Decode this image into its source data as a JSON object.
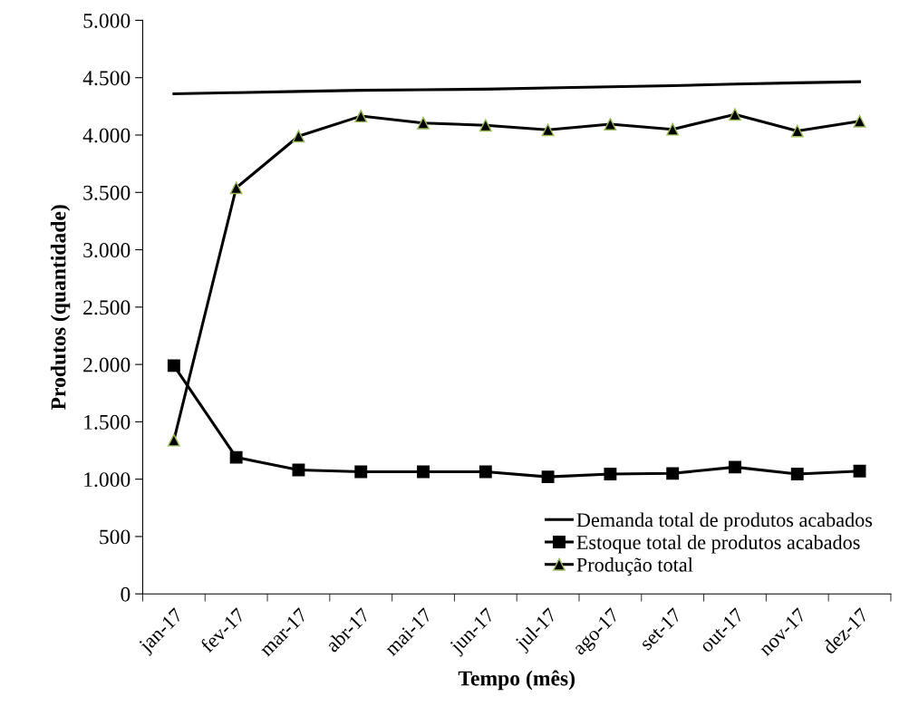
{
  "chart_data": {
    "type": "line",
    "xlabel": "Tempo (mês)",
    "ylabel": "Produtos (quantidade)",
    "categories": [
      "jan-17",
      "fev-17",
      "mar-17",
      "abr-17",
      "mai-17",
      "jun-17",
      "jul-17",
      "ago-17",
      "set-17",
      "out-17",
      "nov-17",
      "dez-17"
    ],
    "series": [
      {
        "name": "Demanda total de produtos acabados",
        "color": "#000000",
        "marker": "none",
        "values": [
          4360,
          4370,
          4380,
          4390,
          4395,
          4400,
          4410,
          4420,
          4430,
          4445,
          4455,
          4465
        ]
      },
      {
        "name": "Estoque total de produtos acabados",
        "color": "#000000",
        "marker": "square",
        "values": [
          1990,
          1190,
          1080,
          1065,
          1065,
          1065,
          1020,
          1045,
          1050,
          1105,
          1045,
          1070
        ]
      },
      {
        "name": "Produção total",
        "color": "#000000",
        "marker": "triangle",
        "values": [
          1340,
          3540,
          3990,
          4165,
          4105,
          4085,
          4045,
          4095,
          4050,
          4180,
          4035,
          4120
        ]
      }
    ],
    "ylim": [
      0,
      5000
    ],
    "yticks": [
      {
        "value": 0,
        "label": "0"
      },
      {
        "value": 500,
        "label": "500"
      },
      {
        "value": 1000,
        "label": "1.000"
      },
      {
        "value": 1500,
        "label": "1.500"
      },
      {
        "value": 2000,
        "label": "2.000"
      },
      {
        "value": 2500,
        "label": "2.500"
      },
      {
        "value": 3000,
        "label": "3.000"
      },
      {
        "value": 3500,
        "label": "3.500"
      },
      {
        "value": 4000,
        "label": "4.000"
      },
      {
        "value": 4500,
        "label": "4.500"
      },
      {
        "value": 5000,
        "label": "5.000"
      }
    ],
    "grid": false,
    "legend": "bottom right",
    "line_style": "solid"
  }
}
